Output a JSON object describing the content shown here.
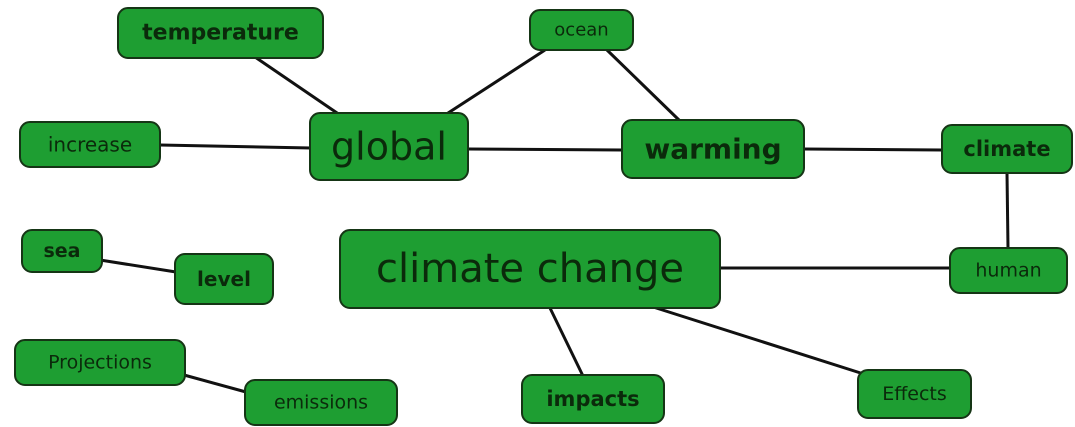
{
  "nodes": [
    {
      "label": "temperature"
    },
    {
      "label": "ocean"
    },
    {
      "label": "increase"
    },
    {
      "label": "global"
    },
    {
      "label": "warming"
    },
    {
      "label": "climate"
    },
    {
      "label": "sea"
    },
    {
      "label": "level"
    },
    {
      "label": "climate change"
    },
    {
      "label": "human"
    },
    {
      "label": "Projections"
    },
    {
      "label": "emissions"
    },
    {
      "label": "impacts"
    },
    {
      "label": "Effects"
    }
  ]
}
